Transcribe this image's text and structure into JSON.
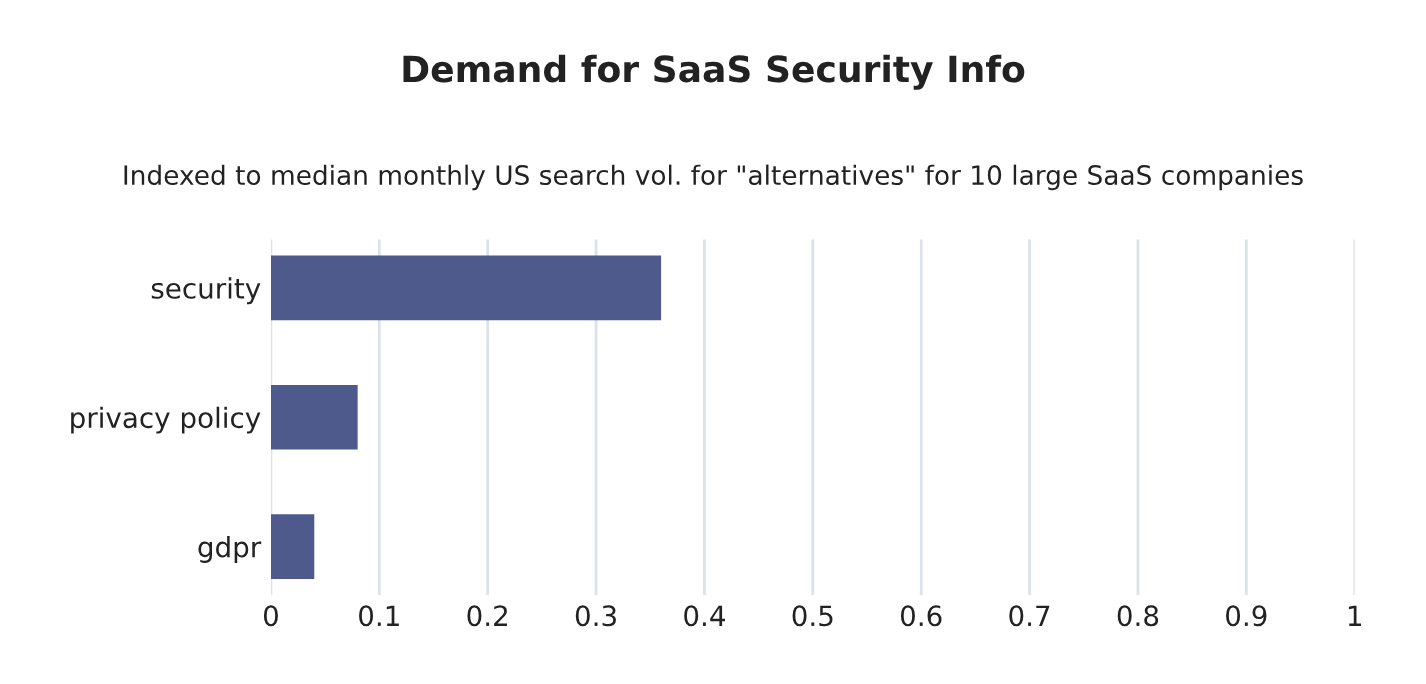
{
  "chart_data": {
    "type": "bar",
    "orientation": "horizontal",
    "title": "Demand for SaaS Security Info",
    "subtitle": "Indexed to median monthly US search vol. for \"alternatives\" for 10 large SaaS companies",
    "categories": [
      "security",
      "privacy policy",
      "gdpr"
    ],
    "values": [
      0.36,
      0.08,
      0.04
    ],
    "color": "#4e5a8c",
    "xlim": [
      0,
      1
    ],
    "xticks": [
      0,
      0.1,
      0.2,
      0.3,
      0.4,
      0.5,
      0.6,
      0.7,
      0.8,
      0.9,
      1
    ],
    "grid": "x",
    "legend": false
  }
}
